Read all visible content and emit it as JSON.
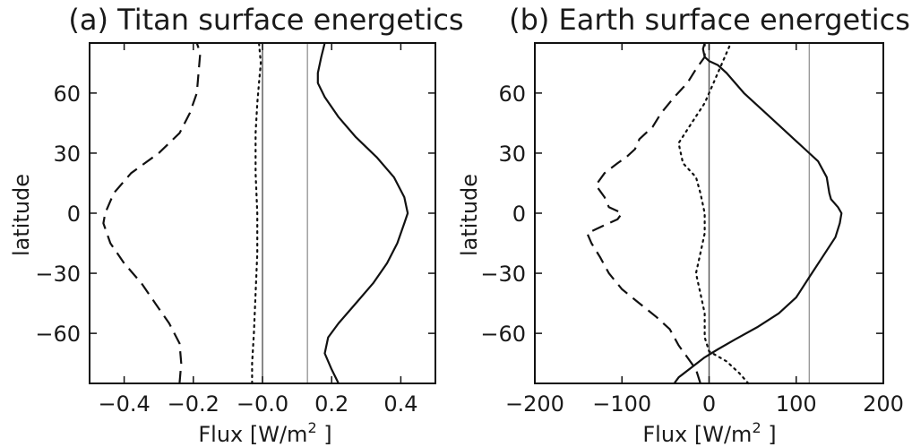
{
  "chart_data": [
    {
      "type": "line",
      "title": "(a) Titan surface energetics",
      "xlabel": "Flux [W/m",
      "xlabel_sup": "2",
      "xlabel_end": " ]",
      "ylabel": "latitude",
      "xlim": [
        -0.5,
        0.5
      ],
      "ylim": [
        -85,
        85
      ],
      "xticks": [
        -0.4,
        -0.2,
        0.0,
        0.2,
        0.4
      ],
      "xtick_labels": [
        "−0.4",
        "−0.2",
        "−0.0",
        "0.2",
        "0.4"
      ],
      "yticks": [
        60,
        30,
        0,
        -30,
        -60
      ],
      "ytick_labels": [
        "60",
        "30",
        "0",
        "−30",
        "−60"
      ],
      "vlines": [
        {
          "x": 0.0,
          "color": "#555555"
        },
        {
          "x": 0.13,
          "color": "#999999"
        }
      ],
      "series": [
        {
          "style": "solid",
          "points": [
            [
              0.22,
              -85
            ],
            [
              0.2,
              -78
            ],
            [
              0.18,
              -70
            ],
            [
              0.19,
              -62
            ],
            [
              0.22,
              -55
            ],
            [
              0.27,
              -45
            ],
            [
              0.32,
              -35
            ],
            [
              0.36,
              -25
            ],
            [
              0.39,
              -15
            ],
            [
              0.41,
              -5
            ],
            [
              0.42,
              0
            ],
            [
              0.41,
              8
            ],
            [
              0.38,
              18
            ],
            [
              0.33,
              28
            ],
            [
              0.27,
              38
            ],
            [
              0.22,
              48
            ],
            [
              0.18,
              58
            ],
            [
              0.16,
              65
            ],
            [
              0.16,
              70
            ],
            [
              0.17,
              78
            ],
            [
              0.18,
              85
            ]
          ]
        },
        {
          "style": "dashed",
          "points": [
            [
              -0.24,
              -85
            ],
            [
              -0.235,
              -75
            ],
            [
              -0.24,
              -65
            ],
            [
              -0.27,
              -55
            ],
            [
              -0.31,
              -45
            ],
            [
              -0.35,
              -35
            ],
            [
              -0.4,
              -25
            ],
            [
              -0.44,
              -15
            ],
            [
              -0.46,
              -5
            ],
            [
              -0.455,
              0
            ],
            [
              -0.43,
              10
            ],
            [
              -0.38,
              20
            ],
            [
              -0.3,
              30
            ],
            [
              -0.24,
              40
            ],
            [
              -0.21,
              50
            ],
            [
              -0.19,
              60
            ],
            [
              -0.185,
              70
            ],
            [
              -0.18,
              80
            ],
            [
              -0.19,
              85
            ]
          ]
        },
        {
          "style": "dotted",
          "points": [
            [
              -0.03,
              -85
            ],
            [
              -0.03,
              -75
            ],
            [
              -0.025,
              -60
            ],
            [
              -0.02,
              -40
            ],
            [
              -0.015,
              -20
            ],
            [
              -0.015,
              0
            ],
            [
              -0.02,
              20
            ],
            [
              -0.02,
              40
            ],
            [
              -0.015,
              55
            ],
            [
              -0.01,
              65
            ],
            [
              -0.005,
              75
            ],
            [
              -0.01,
              85
            ]
          ]
        }
      ]
    },
    {
      "type": "line",
      "title": "(b) Earth surface energetics",
      "xlabel": "Flux [W/m",
      "xlabel_sup": "2",
      "xlabel_end": " ]",
      "ylabel": "latitude",
      "xlim": [
        -200,
        200
      ],
      "ylim": [
        -85,
        85
      ],
      "xticks": [
        -200,
        -100,
        0,
        100,
        200
      ],
      "xtick_labels": [
        "−200",
        "−100",
        "0",
        "100",
        "200"
      ],
      "yticks": [
        60,
        30,
        0,
        -30,
        -60
      ],
      "ytick_labels": [
        "60",
        "30",
        "0",
        "−30",
        "−60"
      ],
      "vlines": [
        {
          "x": 0,
          "color": "#555555"
        },
        {
          "x": 115,
          "color": "#999999"
        }
      ],
      "series": [
        {
          "style": "solid",
          "points": [
            [
              -40,
              -85
            ],
            [
              -35,
              -82
            ],
            [
              -20,
              -77
            ],
            [
              -5,
              -72
            ],
            [
              10,
              -68
            ],
            [
              30,
              -63
            ],
            [
              55,
              -57
            ],
            [
              80,
              -50
            ],
            [
              100,
              -42
            ],
            [
              115,
              -32
            ],
            [
              130,
              -22
            ],
            [
              145,
              -12
            ],
            [
              150,
              -5
            ],
            [
              152,
              0
            ],
            [
              148,
              3
            ],
            [
              140,
              7
            ],
            [
              138,
              10
            ],
            [
              135,
              18
            ],
            [
              125,
              26
            ],
            [
              110,
              32
            ],
            [
              90,
              40
            ],
            [
              65,
              50
            ],
            [
              40,
              60
            ],
            [
              20,
              70
            ],
            [
              10,
              74
            ],
            [
              0,
              76
            ],
            [
              -5,
              78
            ],
            [
              -7,
              82
            ],
            [
              -5,
              85
            ]
          ]
        },
        {
          "style": "dashed",
          "points": [
            [
              -10,
              -85
            ],
            [
              -15,
              -78
            ],
            [
              -25,
              -72
            ],
            [
              -35,
              -66
            ],
            [
              -45,
              -58
            ],
            [
              -60,
              -52
            ],
            [
              -80,
              -45
            ],
            [
              -100,
              -38
            ],
            [
              -115,
              -30
            ],
            [
              -125,
              -22
            ],
            [
              -135,
              -15
            ],
            [
              -140,
              -10
            ],
            [
              -130,
              -8
            ],
            [
              -120,
              -6
            ],
            [
              -105,
              -3
            ],
            [
              -100,
              0
            ],
            [
              -115,
              3
            ],
            [
              -120,
              8
            ],
            [
              -130,
              14
            ],
            [
              -120,
              20
            ],
            [
              -105,
              25
            ],
            [
              -95,
              28
            ],
            [
              -85,
              32
            ],
            [
              -80,
              37
            ],
            [
              -65,
              43
            ],
            [
              -55,
              50
            ],
            [
              -40,
              58
            ],
            [
              -25,
              65
            ],
            [
              -15,
              72
            ],
            [
              -5,
              78
            ],
            [
              -5,
              85
            ]
          ]
        },
        {
          "style": "dotted",
          "points": [
            [
              45,
              -85
            ],
            [
              35,
              -80
            ],
            [
              20,
              -74
            ],
            [
              0,
              -69
            ],
            [
              -5,
              -62
            ],
            [
              -5,
              -50
            ],
            [
              -10,
              -40
            ],
            [
              -15,
              -30
            ],
            [
              -10,
              -20
            ],
            [
              -5,
              -10
            ],
            [
              -5,
              0
            ],
            [
              -10,
              10
            ],
            [
              -15,
              18
            ],
            [
              -30,
              25
            ],
            [
              -35,
              35
            ],
            [
              -20,
              45
            ],
            [
              -5,
              55
            ],
            [
              5,
              65
            ],
            [
              15,
              75
            ],
            [
              25,
              85
            ]
          ]
        }
      ]
    }
  ]
}
